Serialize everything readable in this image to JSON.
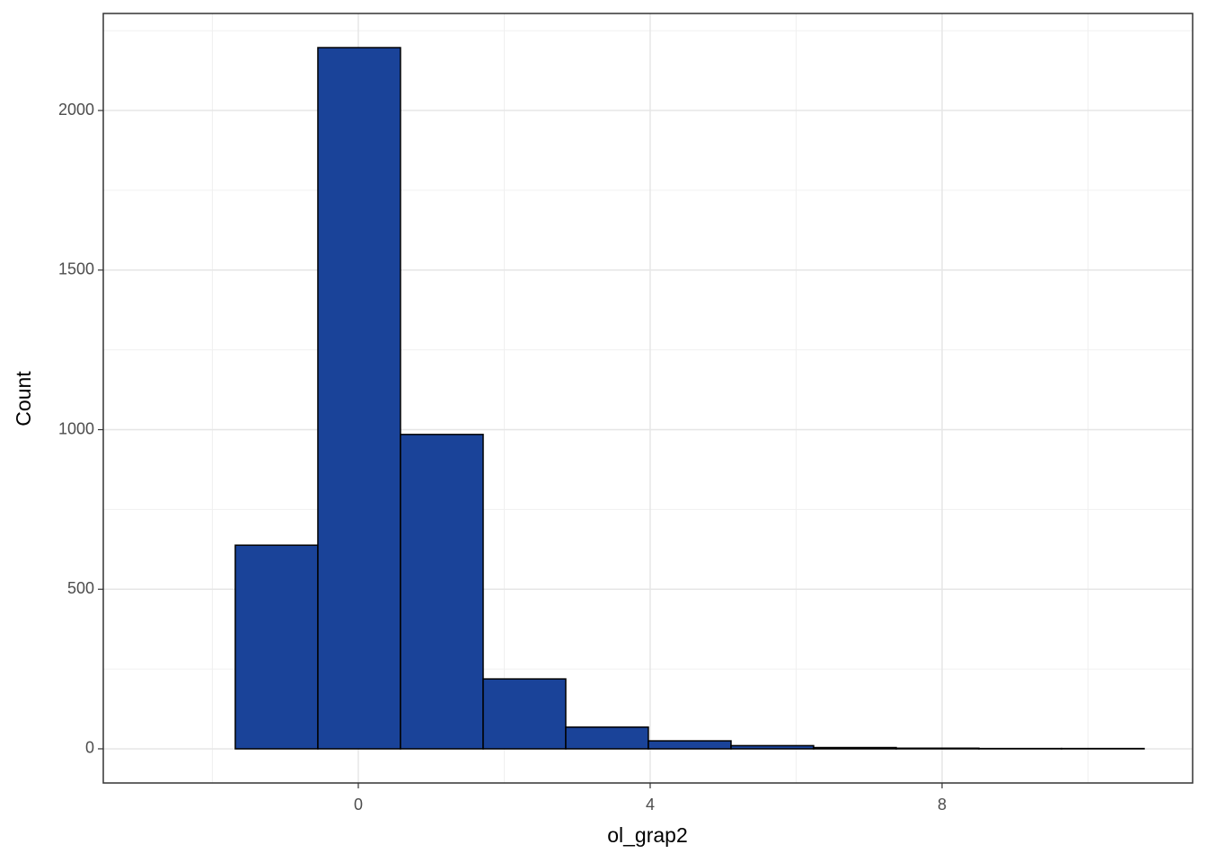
{
  "chart_data": {
    "type": "histogram",
    "x_label": "ol_grap2",
    "y_label": "Count",
    "bins": [
      -2.818,
      -1.686,
      -0.554,
      0.578,
      1.711,
      2.843,
      3.975,
      5.108,
      6.24,
      7.372,
      8.505,
      9.637,
      10.769
    ],
    "values": [
      0,
      638,
      2197,
      985,
      219,
      68,
      25,
      10,
      4,
      2,
      1,
      1
    ],
    "color": "#1a4399",
    "edge_color": "#000000",
    "xlim": [
      -3.495,
      11.434
    ],
    "ylim": [
      -107,
      2304
    ],
    "xticks": [
      0,
      4,
      8
    ],
    "yticks": [
      0,
      500,
      1000,
      1500,
      2000
    ],
    "x_minor_grid": [
      -2,
      2,
      6,
      10
    ],
    "y_minor_grid": [
      250,
      750,
      1250,
      1750,
      2250
    ],
    "grid": true
  }
}
